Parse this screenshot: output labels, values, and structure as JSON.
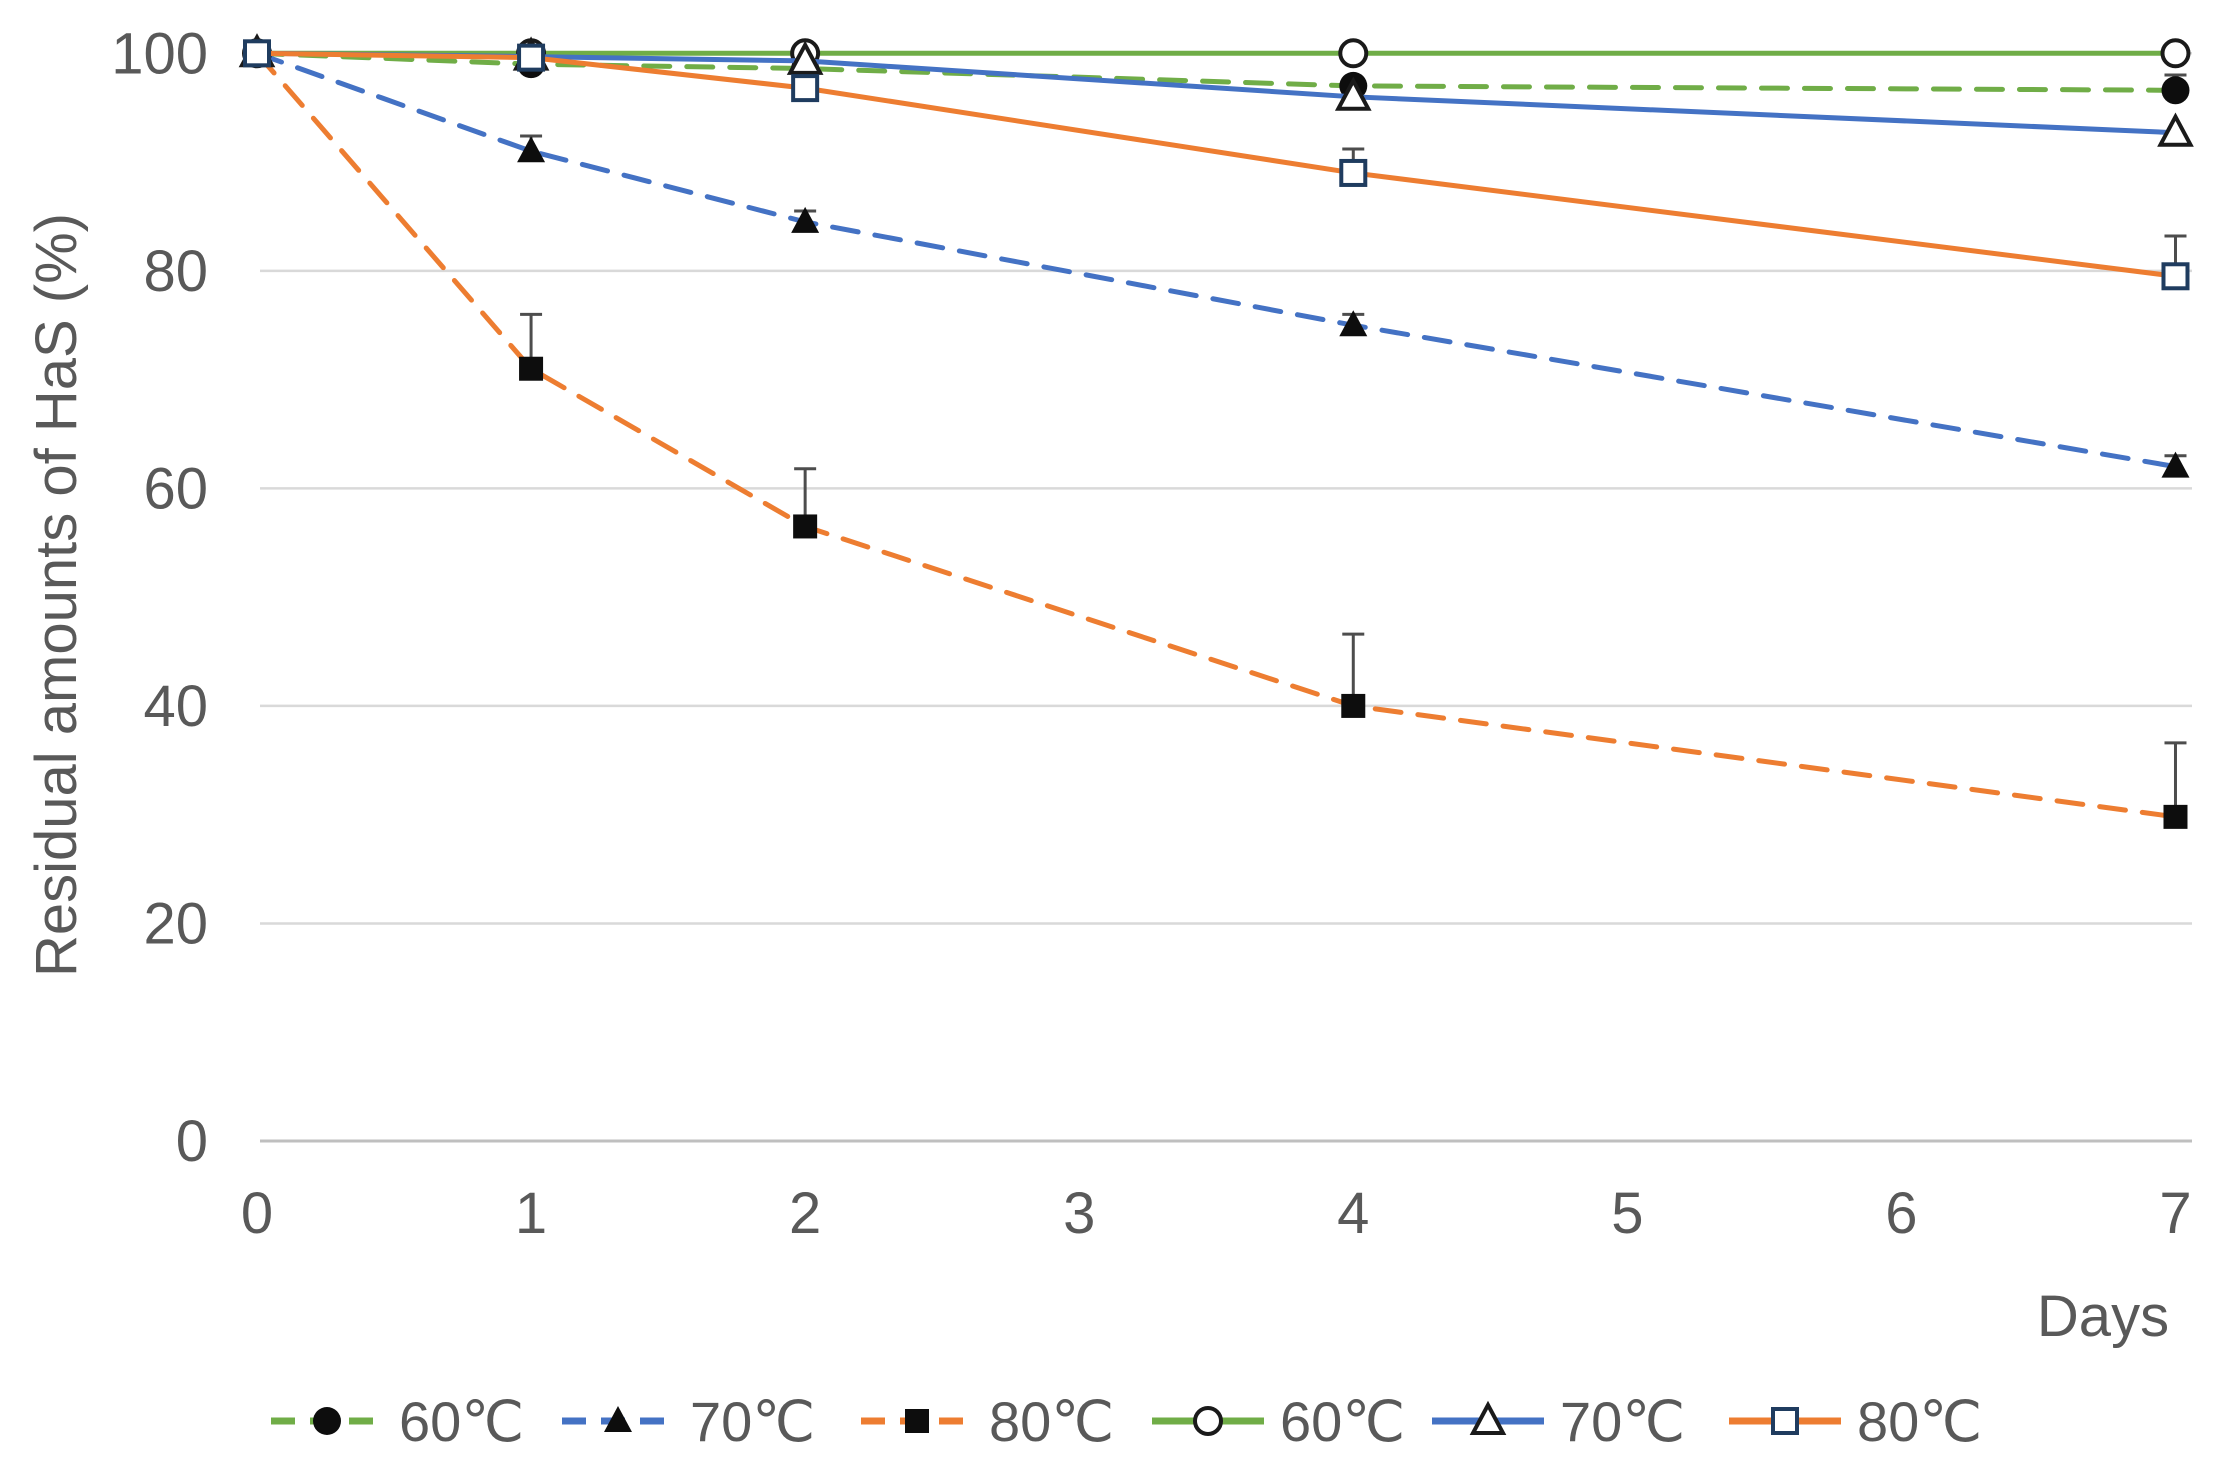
{
  "chart_data": {
    "type": "line",
    "title": "",
    "xlabel": "Days",
    "ylabel": "Residual amounts of HaS (%)",
    "x": [
      0,
      1,
      2,
      4,
      7
    ],
    "xticks": [
      0,
      1,
      2,
      3,
      4,
      5,
      6,
      7
    ],
    "yticks": [
      0,
      20,
      40,
      60,
      80,
      100
    ],
    "xlim": [
      0,
      7
    ],
    "ylim": [
      0,
      100
    ],
    "grid": true,
    "legend_position": "bottom",
    "colors": {
      "green": "#70AD47",
      "blue": "#4472C4",
      "orange": "#ED7D31",
      "gridline": "#D9D9D9",
      "axis_line": "#BFBFBF",
      "text": "#595959",
      "marker_fill": "#0D0D0D",
      "open_square_stroke": "#1F3C5F",
      "error_bar": "#4D4D4D"
    },
    "series": [
      {
        "name": "60℃",
        "line": "dashed",
        "color": "#70AD47",
        "marker": "circle-filled",
        "values": [
          100,
          99,
          98.6,
          97,
          96.6
        ],
        "error_plus": [
          null,
          null,
          null,
          null,
          1.4
        ]
      },
      {
        "name": "70℃",
        "line": "dashed",
        "color": "#4472C4",
        "marker": "triangle-filled",
        "values": [
          100,
          91,
          84.5,
          75,
          62
        ],
        "error_plus": [
          null,
          1.4,
          1.0,
          1.0,
          1.0
        ]
      },
      {
        "name": "80℃",
        "line": "dashed",
        "color": "#ED7D31",
        "marker": "square-filled",
        "values": [
          100,
          71,
          56.5,
          40,
          29.8
        ],
        "error_plus": [
          null,
          5.0,
          5.3,
          6.6,
          6.8
        ]
      },
      {
        "name": "60℃",
        "line": "solid",
        "color": "#70AD47",
        "marker": "circle-open",
        "values": [
          100,
          100,
          100,
          100,
          100
        ],
        "error_plus": [
          null,
          null,
          null,
          null,
          null
        ]
      },
      {
        "name": "70℃",
        "line": "solid",
        "color": "#4472C4",
        "marker": "triangle-open",
        "values": [
          100,
          99.7,
          99.3,
          96,
          92.7
        ],
        "error_plus": [
          null,
          null,
          null,
          null,
          null
        ]
      },
      {
        "name": "80℃",
        "line": "solid",
        "color": "#ED7D31",
        "marker": "square-open",
        "values": [
          100,
          99.6,
          96.8,
          89,
          79.5
        ],
        "error_plus": [
          null,
          null,
          null,
          2.2,
          3.7
        ]
      }
    ]
  }
}
